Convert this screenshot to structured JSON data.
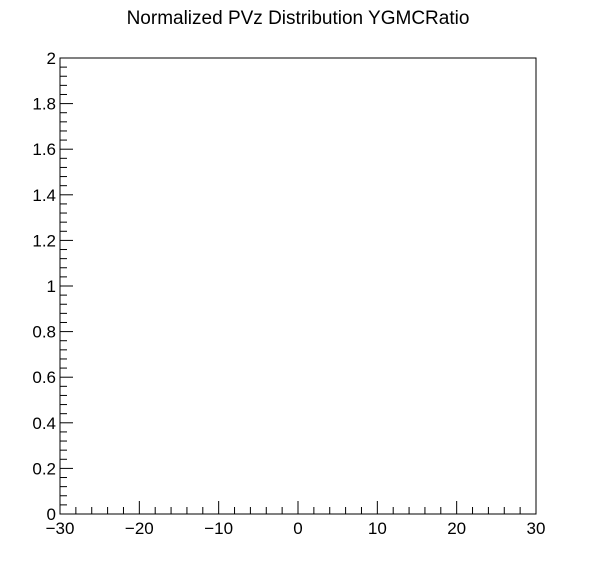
{
  "chart_data": {
    "type": "line",
    "title": "Normalized PVz Distribution YGMCRatio",
    "xlabel": "",
    "ylabel": "",
    "xlim": [
      -30,
      30
    ],
    "ylim": [
      0,
      2
    ],
    "x_ticks": [
      -30,
      -20,
      -10,
      0,
      10,
      20,
      30
    ],
    "x_tick_labels": [
      "−30",
      "−20",
      "−10",
      "0",
      "10",
      "20",
      "30"
    ],
    "y_ticks": [
      0,
      0.2,
      0.4,
      0.6,
      0.8,
      1,
      1.2,
      1.4,
      1.6,
      1.8,
      2
    ],
    "y_tick_labels": [
      "0",
      "0.2",
      "0.4",
      "0.6",
      "0.8",
      "1",
      "1.2",
      "1.4",
      "1.6",
      "1.8",
      "2"
    ],
    "series": [],
    "grid": false,
    "legend": "none"
  }
}
